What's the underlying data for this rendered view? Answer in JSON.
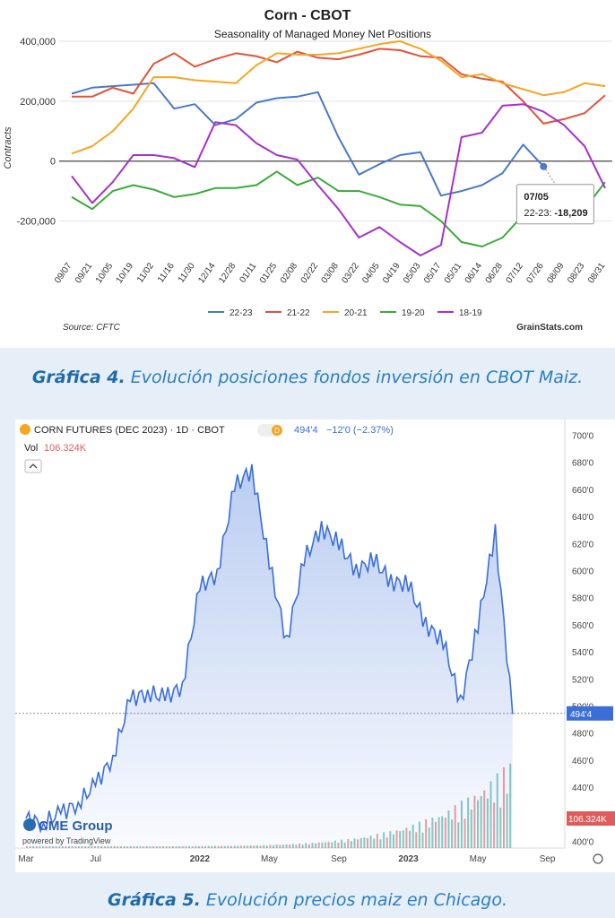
{
  "caption1": {
    "prefix": "Gráfica 4.",
    "text": "Evolución posiciones fondos inversión en CBOT Maiz."
  },
  "caption2": {
    "prefix": "Gráfica 5.",
    "text": "Evolución precios maiz en Chicago."
  },
  "chart_data": [
    {
      "type": "line",
      "title": "Corn - CBOT",
      "subtitle": "Seasonality of Managed Money Net Positions",
      "ylabel": "Contracts",
      "xlabel": "",
      "ylim": [
        -300000,
        400000
      ],
      "yticks": [
        -200000,
        0,
        200000,
        400000
      ],
      "ytick_labels": [
        "-200,000",
        "0",
        "200,000",
        "400,000"
      ],
      "categories": [
        "09/07",
        "09/21",
        "10/05",
        "10/19",
        "11/02",
        "11/16",
        "11/30",
        "12/14",
        "12/28",
        "01/11",
        "01/25",
        "02/08",
        "02/22",
        "03/08",
        "03/22",
        "04/05",
        "04/19",
        "05/03",
        "05/17",
        "05/31",
        "06/14",
        "06/28",
        "07/12",
        "07/26",
        "08/09",
        "08/23",
        "08/31"
      ],
      "series": [
        {
          "name": "22-23",
          "color": "#4a78c8",
          "values": [
            225000,
            245000,
            250000,
            255000,
            260000,
            175000,
            190000,
            120000,
            140000,
            195000,
            210000,
            215000,
            230000,
            80000,
            -45000,
            -10000,
            20000,
            30000,
            -115000,
            -100000,
            -80000,
            -40000,
            55000,
            -18209,
            null,
            null,
            null
          ]
        },
        {
          "name": "21-22",
          "color": "#e0533a",
          "values": [
            215000,
            215000,
            245000,
            225000,
            325000,
            360000,
            315000,
            340000,
            360000,
            350000,
            330000,
            365000,
            345000,
            340000,
            355000,
            375000,
            370000,
            350000,
            345000,
            290000,
            275000,
            265000,
            200000,
            125000,
            140000,
            160000,
            220000
          ]
        },
        {
          "name": "20-21",
          "color": "#f5a623",
          "values": [
            25000,
            50000,
            100000,
            175000,
            280000,
            280000,
            270000,
            265000,
            260000,
            320000,
            360000,
            355000,
            355000,
            360000,
            375000,
            390000,
            400000,
            375000,
            335000,
            280000,
            290000,
            260000,
            240000,
            220000,
            230000,
            260000,
            250000
          ]
        },
        {
          "name": "19-20",
          "color": "#3bab3b",
          "values": [
            -120000,
            -160000,
            -100000,
            -80000,
            -95000,
            -120000,
            -110000,
            -90000,
            -90000,
            -80000,
            -35000,
            -80000,
            -55000,
            -100000,
            -100000,
            -120000,
            -145000,
            -150000,
            -200000,
            -270000,
            -285000,
            -255000,
            -180000,
            -185000,
            -175000,
            -160000,
            -70000
          ]
        },
        {
          "name": "18-19",
          "color": "#a632c8",
          "values": [
            -50000,
            -140000,
            -70000,
            20000,
            20000,
            10000,
            -20000,
            130000,
            120000,
            60000,
            20000,
            5000,
            -80000,
            -160000,
            -255000,
            -220000,
            -270000,
            -315000,
            -280000,
            80000,
            95000,
            185000,
            190000,
            165000,
            120000,
            50000,
            -90000
          ]
        }
      ],
      "tooltip": {
        "date": "07/05",
        "series": "22-23:",
        "value": "-18,209"
      },
      "source": "Source: CFTC",
      "brand": "GrainStats.com",
      "legend_position": "bottom",
      "grid": "horizontal"
    },
    {
      "type": "area",
      "title": "CORN FUTURES (DEC 2023) · 1D · CBOT",
      "badge": "D",
      "quote": "494'4",
      "change": "−12'0 (−2.37%)",
      "vol_label": "Vol",
      "vol_value": "106.324K",
      "price_tag": "494'4",
      "vol_tag": "106.324K",
      "ylim": [
        395,
        705
      ],
      "yticks": [
        400,
        420,
        440,
        460,
        480,
        500,
        520,
        540,
        560,
        580,
        600,
        620,
        640,
        660,
        680,
        700
      ],
      "ytick_labels": [
        "400'0",
        "420'0",
        "440'0",
        "460'0",
        "480'0",
        "500'0",
        "520'0",
        "540'0",
        "560'0",
        "580'0",
        "600'0",
        "620'0",
        "640'0",
        "660'0",
        "680'0",
        "700'0"
      ],
      "x_labels": [
        "Mar",
        "Jul",
        "2022",
        "May",
        "Sep",
        "2023",
        "May",
        "Sep"
      ],
      "x_months_index": [
        0,
        4,
        10,
        14,
        18,
        22,
        26,
        30
      ],
      "line_color": "#3a6fd8",
      "values_by_month": [
        417,
        413,
        421,
        428,
        442,
        462,
        505,
        510,
        506,
        515,
        588,
        598,
        662,
        675,
        605,
        548,
        608,
        632,
        620,
        600,
        608,
        592,
        590,
        560,
        548,
        502,
        560,
        628,
        494
      ],
      "volume_color_up": "#3aa39a",
      "volume_color_down": "#e05c5c",
      "brand": "CME Group",
      "powered": "powered by TradingView"
    }
  ]
}
